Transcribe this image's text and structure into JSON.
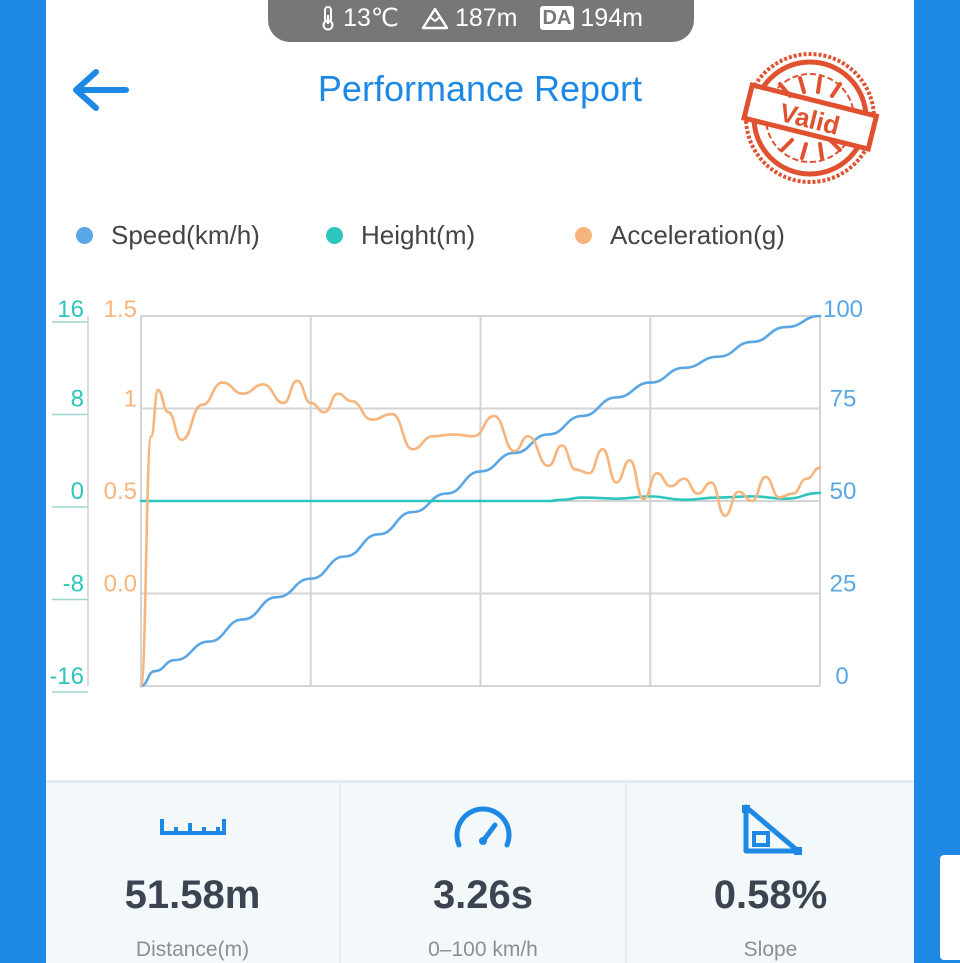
{
  "status_bar": {
    "temperature": "13℃",
    "elevation": "187m",
    "da_label": "DA",
    "density_altitude": "194m"
  },
  "header": {
    "title": "Performance Report",
    "stamp_text": "Valid"
  },
  "colors": {
    "speed": "#5aa7e6",
    "height": "#2cc6bd",
    "acceleration": "#f7b57e",
    "title": "#1e88e5",
    "stamp": "#e0522f"
  },
  "legend": [
    {
      "label": "Speed(km/h)",
      "color": "#5aa7e6"
    },
    {
      "label": "Height(m)",
      "color": "#2cc6bd"
    },
    {
      "label": "Acceleration(g)",
      "color": "#f7b57e"
    }
  ],
  "chart_data": {
    "type": "line",
    "axes": {
      "height_ticks": [
        "16",
        "8",
        "0",
        "-8",
        "-16"
      ],
      "height_range": [
        -16,
        16
      ],
      "acceleration_ticks": [
        "1.5",
        "1",
        "0.5",
        "0.0"
      ],
      "acceleration_range": [
        -0.5,
        1.5
      ],
      "speed_ticks": [
        "100",
        "75",
        "50",
        "25",
        "0"
      ],
      "speed_range": [
        0,
        100
      ]
    },
    "grid": true,
    "x_range": [
      0,
      100
    ],
    "series": [
      {
        "name": "Speed(km/h)",
        "axis": "speed",
        "x": [
          0,
          2,
          5,
          10,
          15,
          20,
          25,
          30,
          35,
          40,
          45,
          50,
          55,
          60,
          65,
          70,
          75,
          80,
          85,
          90,
          95,
          100
        ],
        "y": [
          0,
          4,
          7,
          12,
          18,
          24,
          29,
          35,
          41,
          47,
          52,
          58,
          63,
          68,
          73,
          78,
          82,
          86,
          89,
          93,
          97,
          100
        ]
      },
      {
        "name": "Height(m)",
        "axis": "height",
        "x": [
          0,
          20,
          40,
          60,
          62,
          65,
          70,
          75,
          80,
          85,
          90,
          95,
          100
        ],
        "y": [
          0,
          0,
          0,
          0,
          0.1,
          0.3,
          0.2,
          0.4,
          0.1,
          0.3,
          0.4,
          0.2,
          0.7
        ]
      },
      {
        "name": "Acceleration(g)",
        "axis": "acceleration",
        "x": [
          0,
          1.5,
          2.5,
          4,
          6,
          9,
          12,
          15,
          18,
          21,
          23,
          25,
          27,
          29,
          31,
          34,
          37,
          40,
          43,
          46,
          49,
          52,
          55,
          57,
          60,
          62,
          64,
          66,
          68,
          70,
          72,
          74,
          76,
          78,
          80,
          82,
          84,
          86,
          88,
          90,
          92,
          94,
          96,
          98,
          100
        ],
        "y": [
          -0.5,
          0.85,
          1.1,
          0.98,
          0.83,
          1.02,
          1.14,
          1.08,
          1.13,
          1.03,
          1.15,
          1.03,
          0.98,
          1.08,
          1.04,
          0.94,
          0.97,
          0.78,
          0.85,
          0.86,
          0.85,
          0.96,
          0.77,
          0.85,
          0.69,
          0.8,
          0.67,
          0.65,
          0.78,
          0.6,
          0.72,
          0.51,
          0.65,
          0.58,
          0.62,
          0.54,
          0.6,
          0.42,
          0.55,
          0.5,
          0.63,
          0.52,
          0.54,
          0.62,
          0.68
        ]
      }
    ]
  },
  "stats": [
    {
      "value": "51.58m",
      "label": "Distance(m)",
      "icon": "ruler-icon"
    },
    {
      "value": "3.26s",
      "label": "0–100 km/h",
      "icon": "speedometer-icon"
    },
    {
      "value": "0.58%",
      "label": "Slope",
      "icon": "slope-icon"
    }
  ]
}
